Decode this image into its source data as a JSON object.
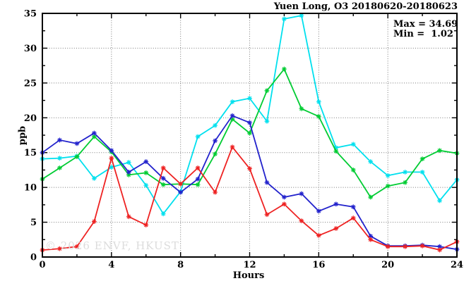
{
  "title": "Yuen Long, O3 20180620-20180623",
  "annotation": {
    "max_label": "Max = 34.69",
    "min_label": "Min =  1.02"
  },
  "watermark": "© 2026 ENVF, HKUST",
  "chart_data": {
    "type": "line",
    "title": "Yuen Long, O3 20180620-20180623",
    "xlabel": "Hours",
    "ylabel": "ppb",
    "xlim": [
      0,
      24
    ],
    "ylim": [
      0,
      35
    ],
    "x_major_ticks": [
      0,
      4,
      8,
      12,
      16,
      20,
      24
    ],
    "x_minor_step": 2,
    "y_major_ticks": [
      0,
      5,
      10,
      15,
      20,
      25,
      30,
      35
    ],
    "y_minor_step": 2.5,
    "grid": true,
    "legend": "none",
    "max_value": 34.69,
    "min_value": 1.02,
    "marker": "star",
    "x": [
      0,
      1,
      2,
      3,
      4,
      5,
      6,
      7,
      8,
      9,
      10,
      11,
      12,
      13,
      14,
      15,
      16,
      17,
      18,
      19,
      20,
      21,
      22,
      23,
      24
    ],
    "series": [
      {
        "name": "day-cyan",
        "color": "#00e0ee",
        "values": [
          14.1,
          14.2,
          14.5,
          11.3,
          12.9,
          13.6,
          10.3,
          6.2,
          9.4,
          17.3,
          18.9,
          22.3,
          22.8,
          19.5,
          34.2,
          34.69,
          22.3,
          15.7,
          16.2,
          13.7,
          11.7,
          12.2,
          12.2,
          8.1,
          11.1
        ]
      },
      {
        "name": "day-green",
        "color": "#00cc33",
        "values": [
          11.2,
          12.8,
          14.4,
          17.3,
          15.1,
          11.8,
          12.1,
          10.4,
          10.5,
          10.4,
          14.8,
          19.8,
          17.8,
          23.9,
          27.0,
          21.3,
          20.2,
          15.2,
          12.5,
          8.6,
          10.2,
          10.7,
          14.1,
          15.3,
          14.9
        ]
      },
      {
        "name": "day-blue",
        "color": "#2222cc",
        "values": [
          15.0,
          16.8,
          16.3,
          17.8,
          15.3,
          12.2,
          13.7,
          11.3,
          9.3,
          11.2,
          16.7,
          20.3,
          19.3,
          10.7,
          8.6,
          9.1,
          6.6,
          7.6,
          7.2,
          3.0,
          1.6,
          1.6,
          1.7,
          1.5,
          1.1
        ]
      },
      {
        "name": "day-red",
        "color": "#ee2222",
        "values": [
          1.0,
          1.2,
          1.5,
          5.1,
          14.2,
          5.8,
          4.6,
          12.8,
          10.5,
          12.8,
          9.3,
          15.8,
          12.7,
          6.1,
          7.6,
          5.2,
          3.1,
          4.1,
          5.6,
          2.5,
          1.5,
          1.5,
          1.6,
          1.02,
          2.2
        ]
      }
    ]
  }
}
